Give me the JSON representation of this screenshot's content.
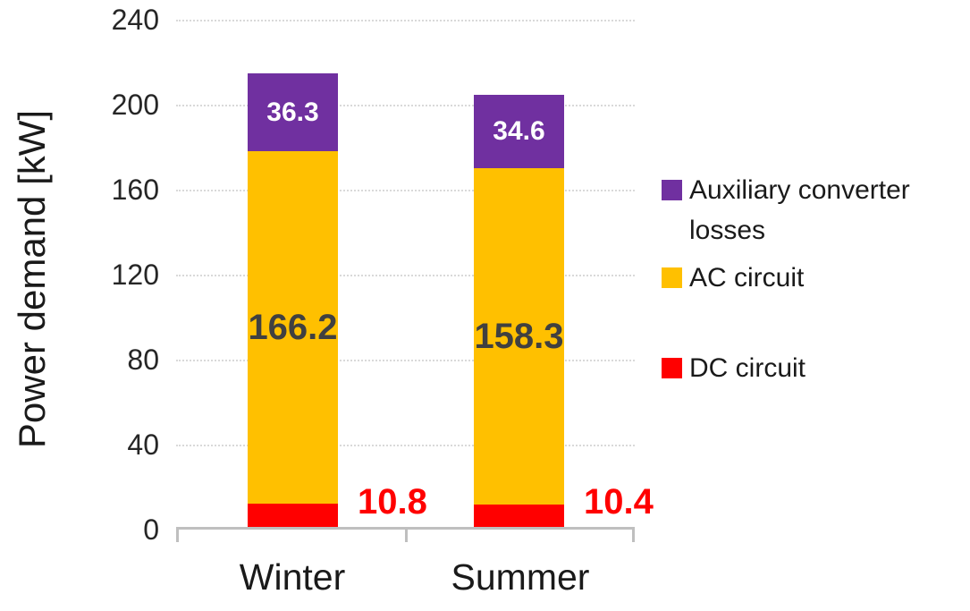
{
  "chart_data": {
    "type": "bar",
    "stacked": true,
    "categories": [
      "Winter",
      "Summer"
    ],
    "series": [
      {
        "name": "DC circuit",
        "color": "#FF0000",
        "values": [
          10.8,
          10.4
        ]
      },
      {
        "name": "AC circuit",
        "color": "#FFC000",
        "values": [
          166.2,
          158.3
        ]
      },
      {
        "name": "Auxiliary converter losses",
        "color": "#7030A0",
        "values": [
          36.3,
          34.6
        ]
      }
    ],
    "ylabel": "Power demand [kW]",
    "xlabel": "",
    "ylim": [
      0,
      240
    ],
    "yticks": [
      0,
      40,
      80,
      120,
      160,
      200,
      240
    ],
    "grid": true,
    "legend_position": "right",
    "data_label_colors": {
      "dc_outside": "#FF0000",
      "ac_inside": "#404040",
      "aux_inside": "#FFFFFF"
    },
    "axis_colors": {
      "gridline": "#D9D9D9",
      "axis_line": "#BFBFBF",
      "tick_text": "#262626"
    }
  }
}
